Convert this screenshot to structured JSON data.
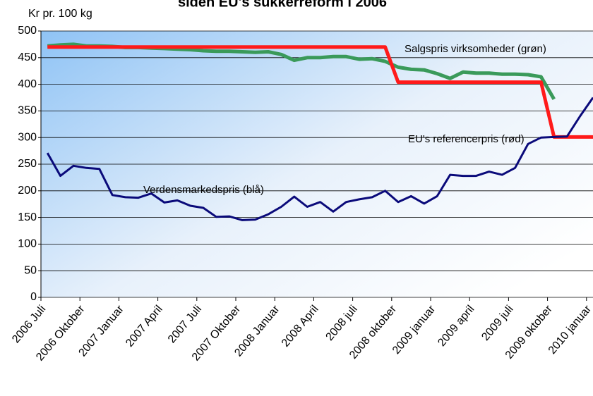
{
  "chart_data": {
    "type": "line",
    "title": "siden EU's sukkerreform i 2006",
    "ylabel": "Kr pr. 100 kg",
    "categories": [
      "2006 Juli",
      null,
      null,
      "2006 Oktober",
      null,
      null,
      "2007 Januar",
      null,
      null,
      "2007 April",
      null,
      null,
      "2007 Juli",
      null,
      null,
      "2007 Oktober",
      null,
      null,
      "2008 Januar",
      null,
      null,
      "2008 April",
      null,
      null,
      "2008 juli",
      null,
      null,
      "2008 oktober",
      null,
      null,
      "2009 januar",
      null,
      null,
      "2009 april",
      null,
      null,
      "2009 juli",
      null,
      null,
      "2009 oktober",
      null,
      null,
      "2010 januar"
    ],
    "series": [
      {
        "color": "#3a9a5a",
        "values": [
          472,
          474,
          475,
          472,
          472,
          471,
          469,
          469,
          468,
          467,
          466,
          465,
          463,
          462,
          462,
          461,
          460,
          461,
          456,
          445,
          450,
          450,
          452,
          452,
          447,
          448,
          443,
          432,
          428,
          427,
          420,
          411,
          423,
          421,
          421,
          419,
          419,
          418,
          414,
          372,
          null,
          null,
          null
        ]
      },
      {
        "color": "#ff1a1a",
        "values": [
          470,
          470,
          470,
          470,
          470,
          470,
          470,
          470,
          470,
          470,
          470,
          470,
          470,
          470,
          470,
          470,
          470,
          470,
          470,
          470,
          470,
          470,
          470,
          470,
          470,
          470,
          470,
          404,
          404,
          404,
          404,
          404,
          404,
          404,
          404,
          404,
          404,
          404,
          404,
          301,
          301,
          301,
          301
        ]
      },
      {
        "color": "#0a0a7a",
        "values": [
          271,
          228,
          247,
          243,
          241,
          192,
          188,
          187,
          195,
          178,
          182,
          172,
          168,
          151,
          152,
          145,
          146,
          156,
          170,
          189,
          170,
          179,
          161,
          179,
          184,
          188,
          200,
          179,
          190,
          176,
          190,
          230,
          228,
          228,
          236,
          230,
          243,
          288,
          300,
          301,
          302,
          340,
          375
        ]
      }
    ],
    "annotations": [
      {
        "text": "Salgspris virksomheder (grøn)"
      },
      {
        "text": "EU's referencerpris (rød)"
      },
      {
        "text": "Verdensmarkedspris (blå)"
      }
    ],
    "ylim": [
      0,
      500
    ],
    "yticks": [
      0,
      50,
      100,
      150,
      200,
      250,
      300,
      350,
      400,
      450,
      500
    ],
    "grid": true
  }
}
